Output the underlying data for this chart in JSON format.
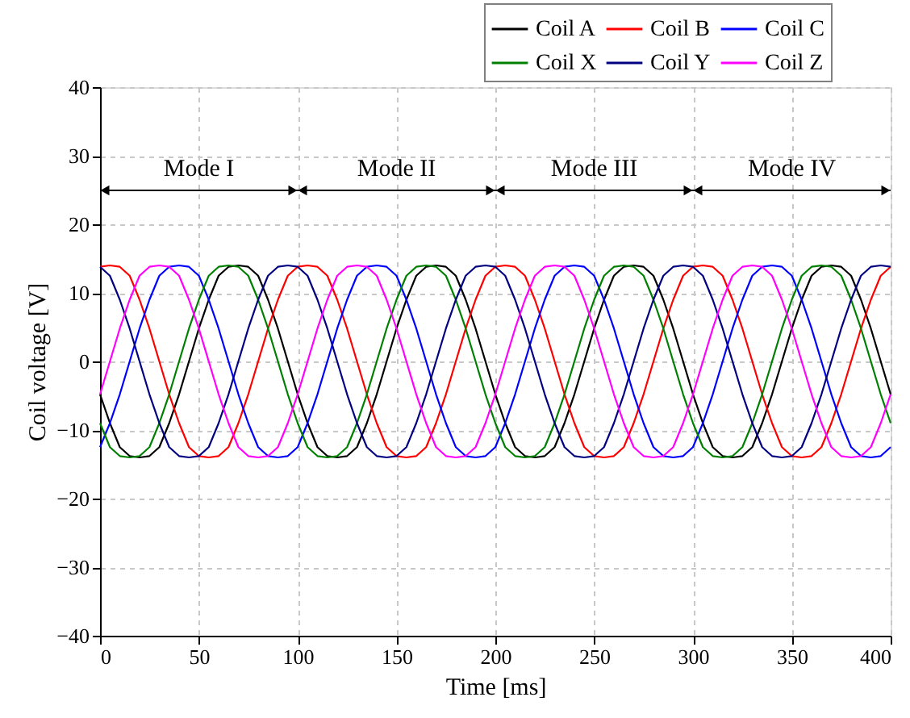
{
  "chart_data": {
    "type": "line",
    "xlabel": "Time [ms]",
    "ylabel": "Coil voltage [V]",
    "x": [
      0,
      5,
      10,
      15,
      20,
      25,
      30,
      35,
      40,
      45,
      50,
      55,
      60,
      65,
      70,
      75,
      80,
      85,
      90,
      95,
      100,
      105,
      110,
      115,
      120,
      125,
      130,
      135,
      140,
      145,
      150,
      155,
      160,
      165,
      170,
      175,
      180,
      185,
      190,
      195,
      200,
      205,
      210,
      215,
      220,
      225,
      230,
      235,
      240,
      245,
      250,
      255,
      260,
      265,
      270,
      275,
      280,
      285,
      290,
      295,
      300,
      305,
      310,
      315,
      320,
      325,
      330,
      335,
      340,
      345,
      350,
      355,
      360,
      365,
      370,
      375,
      380,
      385,
      390,
      395,
      400
    ],
    "series": [
      {
        "name": "Coil A",
        "color": "#000000",
        "values": [
          -4.8,
          -9,
          -12.5,
          -13.8,
          -14,
          -13.8,
          -12.5,
          -9,
          -4.8,
          0,
          4.8,
          9,
          12.5,
          13.8,
          14,
          13.8,
          12.5,
          9,
          4.8,
          0,
          -4.8,
          -9,
          -12.5,
          -13.8,
          -14,
          -13.8,
          -12.5,
          -9,
          -4.8,
          0,
          4.8,
          9,
          12.5,
          13.8,
          14,
          13.8,
          12.5,
          9,
          4.8,
          0,
          -4.8,
          -9,
          -12.5,
          -13.8,
          -14,
          -13.8,
          -12.5,
          -9,
          -4.8,
          0,
          4.8,
          9,
          12.5,
          13.8,
          14,
          13.8,
          12.5,
          9,
          4.8,
          0,
          -4.8,
          -9,
          -12.5,
          -13.8,
          -14,
          -13.8,
          -12.5,
          -9,
          -4.8,
          0,
          4.8,
          9,
          12.5,
          13.8,
          14,
          13.8,
          12.5,
          9,
          4.8,
          0,
          -4.8
        ]
      },
      {
        "name": "Coil B",
        "color": "#ff0000",
        "values": [
          13.8,
          14,
          13.8,
          12.5,
          9,
          4.8,
          0,
          -4.8,
          -9,
          -12.5,
          -13.8,
          -14,
          -13.8,
          -12.5,
          -9,
          -4.8,
          0,
          4.8,
          9,
          12.5,
          13.8,
          14,
          13.8,
          12.5,
          9,
          4.8,
          0,
          -4.8,
          -9,
          -12.5,
          -13.8,
          -14,
          -13.8,
          -12.5,
          -9,
          -4.8,
          0,
          4.8,
          9,
          12.5,
          13.8,
          14,
          13.8,
          12.5,
          9,
          4.8,
          0,
          -4.8,
          -9,
          -12.5,
          -13.8,
          -14,
          -13.8,
          -12.5,
          -9,
          -4.8,
          0,
          4.8,
          9,
          12.5,
          13.8,
          14,
          13.8,
          12.5,
          9,
          4.8,
          0,
          -4.8,
          -9,
          -12.5,
          -13.8,
          -14,
          -13.8,
          -12.5,
          -9,
          -4.8,
          0,
          4.8,
          9,
          12.5,
          13.8
        ]
      },
      {
        "name": "Coil C",
        "color": "#0000ff",
        "values": [
          -12.5,
          -9,
          -4.8,
          0,
          4.8,
          9,
          12.5,
          13.8,
          14,
          13.8,
          12.5,
          9,
          4.8,
          0,
          -4.8,
          -9,
          -12.5,
          -13.8,
          -14,
          -13.8,
          -12.5,
          -9,
          -4.8,
          0,
          4.8,
          9,
          12.5,
          13.8,
          14,
          13.8,
          12.5,
          9,
          4.8,
          0,
          -4.8,
          -9,
          -12.5,
          -13.8,
          -14,
          -13.8,
          -12.5,
          -9,
          -4.8,
          0,
          4.8,
          9,
          12.5,
          13.8,
          14,
          13.8,
          12.5,
          9,
          4.8,
          0,
          -4.8,
          -9,
          -12.5,
          -13.8,
          -14,
          -13.8,
          -12.5,
          -9,
          -4.8,
          0,
          4.8,
          9,
          12.5,
          13.8,
          14,
          13.8,
          12.5,
          9,
          4.8,
          0,
          -4.8,
          -9,
          -12.5,
          -13.8,
          -14,
          -13.8,
          -12.5
        ]
      },
      {
        "name": "Coil X",
        "color": "#008000",
        "values": [
          -9,
          -12.5,
          -13.8,
          -14,
          -13.8,
          -12.5,
          -9,
          -4.8,
          0,
          4.8,
          9,
          12.5,
          13.8,
          14,
          13.8,
          12.5,
          9,
          4.8,
          0,
          -4.8,
          -9,
          -12.5,
          -13.8,
          -14,
          -13.8,
          -12.5,
          -9,
          -4.8,
          0,
          4.8,
          9,
          12.5,
          13.8,
          14,
          13.8,
          12.5,
          9,
          4.8,
          0,
          -4.8,
          -9,
          -12.5,
          -13.8,
          -14,
          -13.8,
          -12.5,
          -9,
          -4.8,
          0,
          4.8,
          9,
          12.5,
          13.8,
          14,
          13.8,
          12.5,
          9,
          4.8,
          0,
          -4.8,
          -9,
          -12.5,
          -13.8,
          -14,
          -13.8,
          -12.5,
          -9,
          -4.8,
          0,
          4.8,
          9,
          12.5,
          13.8,
          14,
          13.8,
          12.5,
          9,
          4.8,
          0,
          -4.8,
          -9
        ]
      },
      {
        "name": "Coil Y",
        "color": "#000080",
        "values": [
          13.8,
          12.5,
          9,
          4.8,
          0,
          -4.8,
          -9,
          -12.5,
          -13.8,
          -14,
          -13.8,
          -12.5,
          -9,
          -4.8,
          0,
          4.8,
          9,
          12.5,
          13.8,
          14,
          13.8,
          12.5,
          9,
          4.8,
          0,
          -4.8,
          -9,
          -12.5,
          -13.8,
          -14,
          -13.8,
          -12.5,
          -9,
          -4.8,
          0,
          4.8,
          9,
          12.5,
          13.8,
          14,
          13.8,
          12.5,
          9,
          4.8,
          0,
          -4.8,
          -9,
          -12.5,
          -13.8,
          -14,
          -13.8,
          -12.5,
          -9,
          -4.8,
          0,
          4.8,
          9,
          12.5,
          13.8,
          14,
          13.8,
          12.5,
          9,
          4.8,
          0,
          -4.8,
          -9,
          -12.5,
          -13.8,
          -14,
          -13.8,
          -12.5,
          -9,
          -4.8,
          0,
          4.8,
          9,
          12.5,
          13.8,
          14,
          13.8
        ]
      },
      {
        "name": "Coil Z",
        "color": "#ff00ff",
        "values": [
          -4.8,
          0,
          4.8,
          9,
          12.5,
          13.8,
          14,
          13.8,
          12.5,
          9,
          4.8,
          0,
          -4.8,
          -9,
          -12.5,
          -13.8,
          -14,
          -13.8,
          -12.5,
          -9,
          -4.8,
          0,
          4.8,
          9,
          12.5,
          13.8,
          14,
          13.8,
          12.5,
          9,
          4.8,
          0,
          -4.8,
          -9,
          -12.5,
          -13.8,
          -14,
          -13.8,
          -12.5,
          -9,
          -4.8,
          0,
          4.8,
          9,
          12.5,
          13.8,
          14,
          13.8,
          12.5,
          9,
          4.8,
          0,
          -4.8,
          -9,
          -12.5,
          -13.8,
          -14,
          -13.8,
          -12.5,
          -9,
          -4.8,
          0,
          4.8,
          9,
          12.5,
          13.8,
          14,
          13.8,
          12.5,
          9,
          4.8,
          0,
          -4.8,
          -9,
          -12.5,
          -13.8,
          -14,
          -13.8,
          -12.5,
          -9,
          -4.8
        ]
      }
    ],
    "annotations": [
      "Mode I",
      "Mode II",
      "Mode III",
      "Mode IV"
    ],
    "xlim": [
      0,
      400
    ],
    "xticks": [
      0,
      50,
      100,
      150,
      200,
      250,
      300,
      350,
      400
    ],
    "ylim": [
      -40,
      40
    ],
    "yticks": [
      -40,
      -30,
      -20,
      -10,
      0,
      10,
      20,
      30,
      40
    ],
    "grid": true,
    "legend": "top right",
    "line_style": "solid",
    "marker": "none"
  }
}
